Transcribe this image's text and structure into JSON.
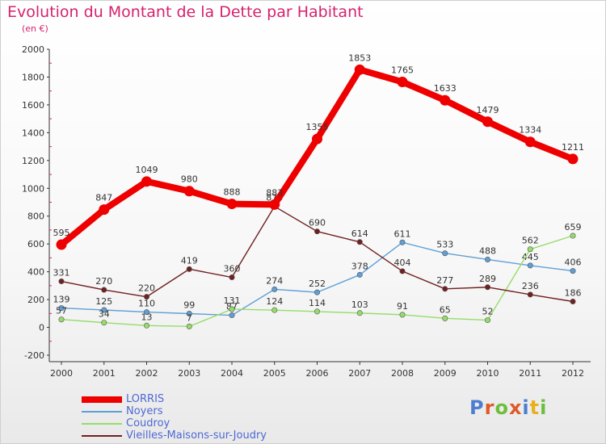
{
  "header": {
    "title": "Evolution du Montant de la Dette par Habitant",
    "subtitle": "(en €)"
  },
  "logo": {
    "text": "Proxiti",
    "colors": [
      "#4d7fd0",
      "#e0592a",
      "#6cbf3c",
      "#e0592a",
      "#4d7fd0",
      "#e8b01f",
      "#6cbf3c"
    ]
  },
  "chart_data": {
    "type": "line",
    "x": [
      "2000",
      "2001",
      "2002",
      "2003",
      "2004",
      "2005",
      "2006",
      "2007",
      "2008",
      "2009",
      "2010",
      "2011",
      "2012"
    ],
    "ylim": [
      -200,
      2000
    ],
    "yticks": [
      -200,
      0,
      200,
      400,
      600,
      800,
      1000,
      1200,
      1400,
      1600,
      1800,
      2000
    ],
    "grid": false,
    "legend_position": "bottom-left",
    "series": [
      {
        "name": "LORRIS",
        "color": "#ee0000",
        "values": [
          595,
          847,
          1049,
          980,
          888,
          883,
          1355,
          1853,
          1765,
          1633,
          1479,
          1334,
          1211
        ],
        "labels": [
          "595",
          "847",
          "1049",
          "980",
          "888",
          "883",
          "1355",
          "1853",
          "1765",
          "1633",
          "1479",
          "1334",
          "1211"
        ]
      },
      {
        "name": "Noyers",
        "color": "#5f9fd6",
        "values": [
          139,
          125,
          110,
          99,
          87,
          274,
          252,
          378,
          611,
          533,
          488,
          445,
          406
        ],
        "labels": [
          "139",
          "125",
          "110",
          "99",
          "87",
          "274",
          "252",
          "378",
          "611",
          "533",
          "488",
          "445",
          "406"
        ]
      },
      {
        "name": "Coudroy",
        "color": "#96dc6a",
        "values": [
          57,
          34,
          13,
          7,
          131,
          124,
          114,
          103,
          91,
          65,
          52,
          562,
          659
        ],
        "labels": [
          "57",
          "34",
          "13",
          "7",
          "131",
          "124",
          "114",
          "103",
          "91",
          "65",
          "52",
          "562",
          "659"
        ]
      },
      {
        "name": "Vieilles-Maisons-sur-Joudry",
        "color": "#702020",
        "values": [
          331,
          270,
          220,
          419,
          360,
          870,
          690,
          614,
          404,
          277,
          289,
          236,
          186
        ],
        "labels": [
          "331",
          "270",
          "220",
          "419",
          "360",
          "870",
          "690",
          "614",
          "404",
          "277",
          "289",
          "236",
          "186"
        ]
      }
    ]
  }
}
